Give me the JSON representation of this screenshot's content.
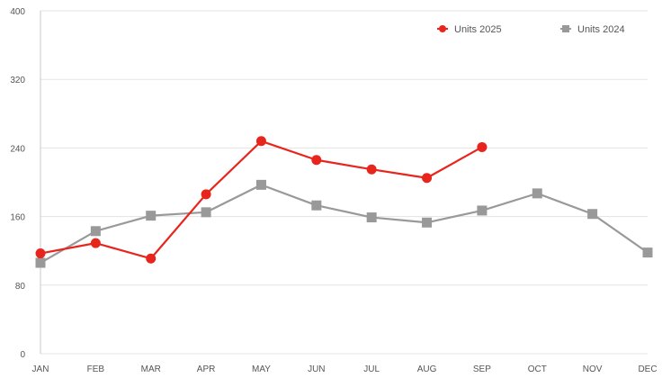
{
  "chart_data": {
    "type": "line",
    "title": "",
    "xlabel": "",
    "ylabel": "",
    "categories": [
      "JAN",
      "FEB",
      "MAR",
      "APR",
      "MAY",
      "JUN",
      "JUL",
      "AUG",
      "SEP",
      "OCT",
      "NOV",
      "DEC"
    ],
    "ylim": [
      0,
      400
    ],
    "yticks": [
      0,
      80,
      160,
      240,
      320,
      400
    ],
    "grid": true,
    "legend_position": "top-right",
    "series": [
      {
        "name": "Units 2025",
        "color": "#e8251c",
        "marker": "circle",
        "values": [
          117,
          129,
          111,
          186,
          248,
          226,
          215,
          205,
          241,
          null,
          null,
          null
        ]
      },
      {
        "name": "Units 2024",
        "color": "#999999",
        "marker": "square",
        "values": [
          106,
          143,
          161,
          165,
          197,
          173,
          159,
          153,
          167,
          187,
          163,
          118
        ]
      }
    ]
  }
}
